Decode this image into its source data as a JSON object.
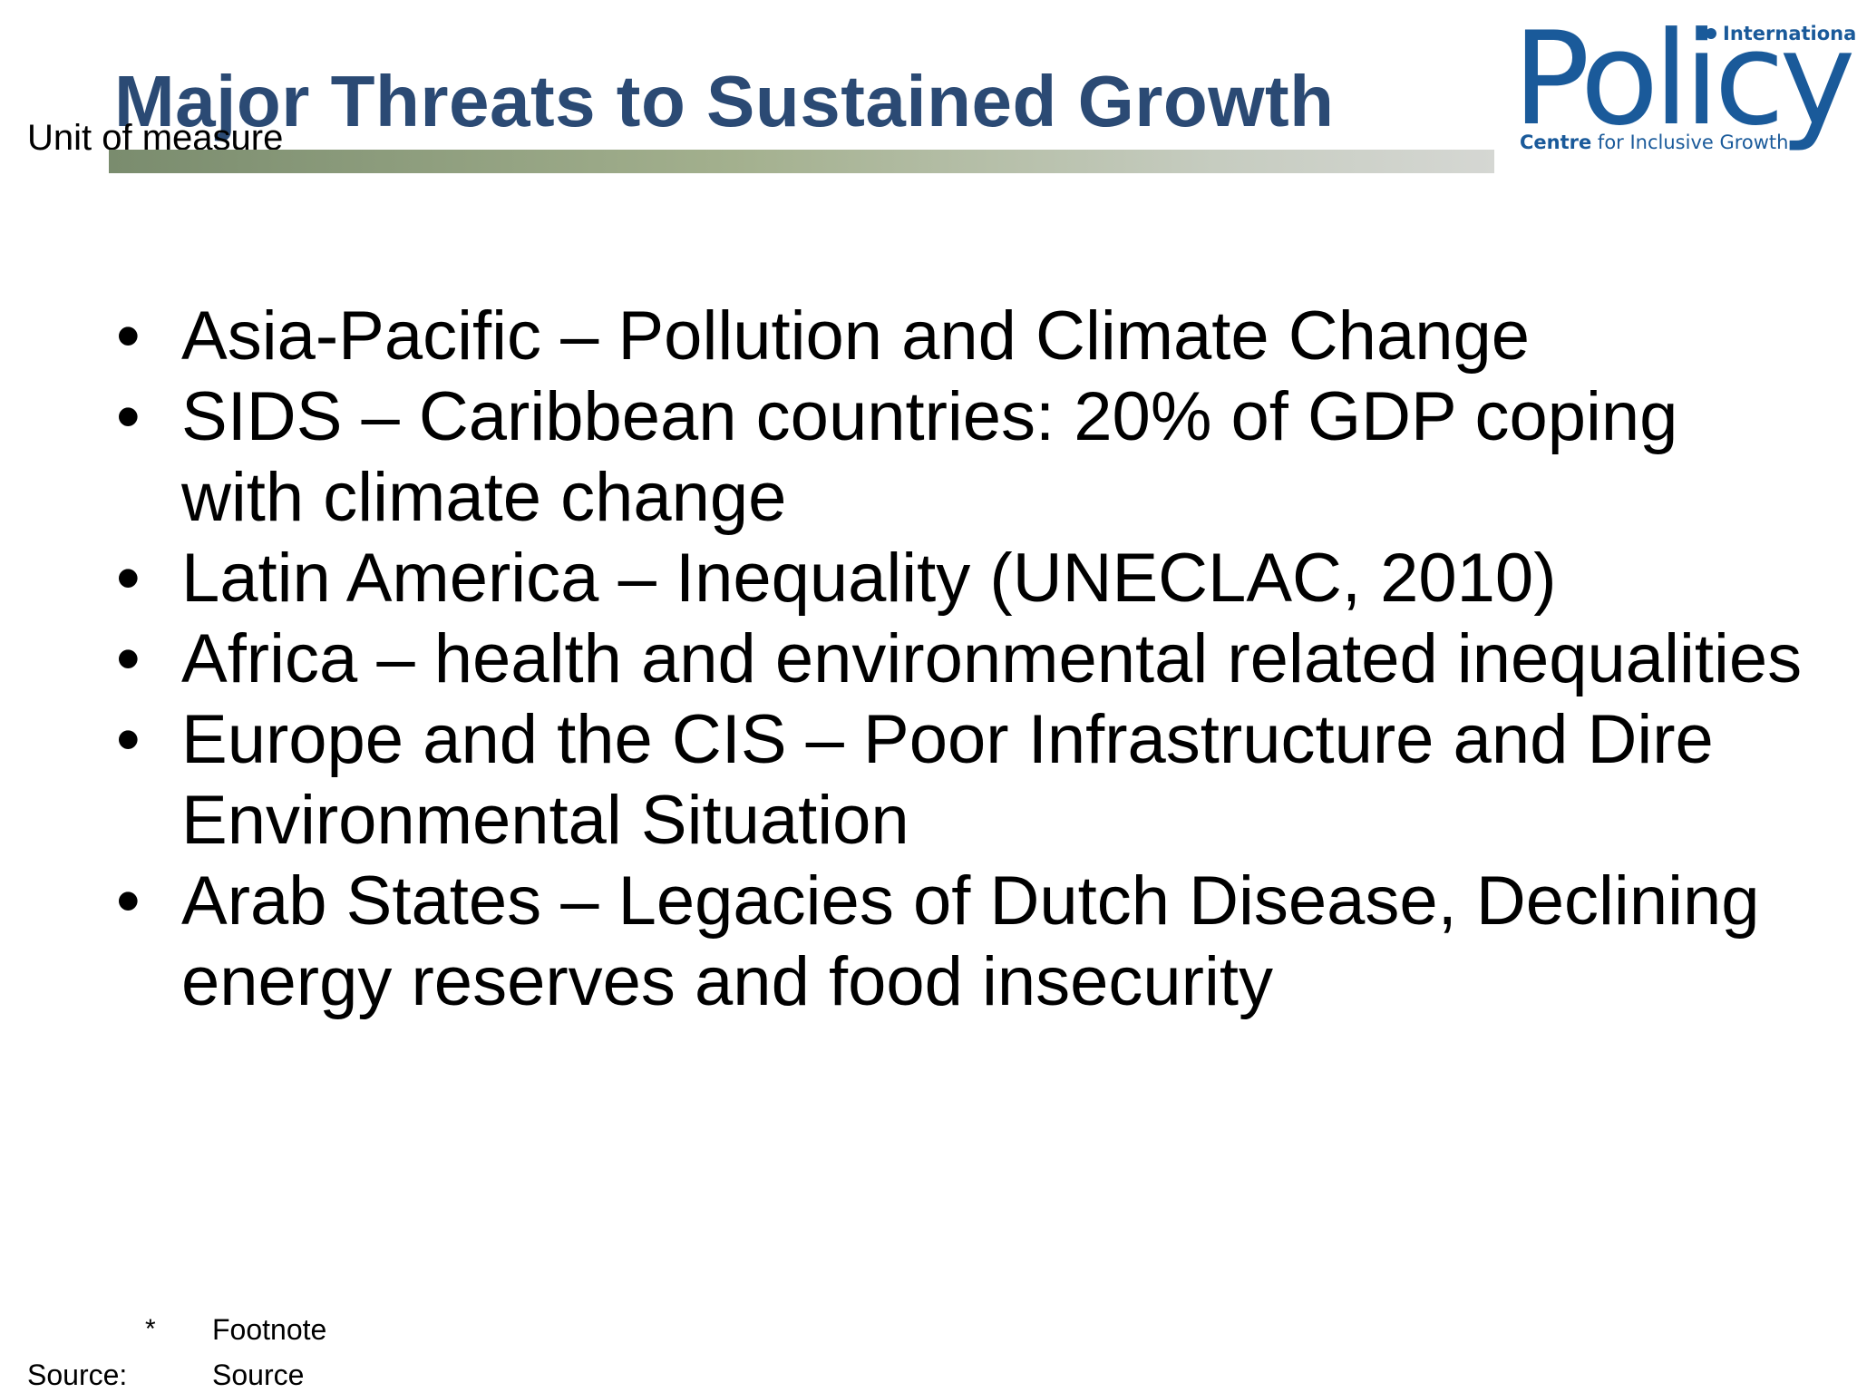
{
  "slide": {
    "title": "Major Threats to  Sustained Growth",
    "unit_label": "Unit of measure",
    "logo": {
      "top_text": "International",
      "word": "Policy",
      "sub_bold": "Centre",
      "sub_rest": " for Inclusive Growth",
      "color": "#1a5a9a"
    },
    "bullets": [
      "Asia-Pacific – Pollution and Climate Change",
      "SIDS –  Caribbean countries: 20% of GDP coping with climate change",
      "Latin America – Inequality (UNECLAC, 2010)",
      "Africa – health and environmental related inequalities",
      "Europe and the CIS – Poor Infrastructure and Dire Environmental Situation",
      "Arab States – Legacies of Dutch Disease, Declining energy reserves and food insecurity"
    ],
    "bullet_symbol": "•",
    "footnote": {
      "mark": "*",
      "text": "Footnote"
    },
    "source": {
      "label": "Source:",
      "text": "Source"
    },
    "colors": {
      "title": "#2b4a74",
      "bar_start": "#7a8c6e",
      "bar_end": "#d5d7d3"
    }
  }
}
